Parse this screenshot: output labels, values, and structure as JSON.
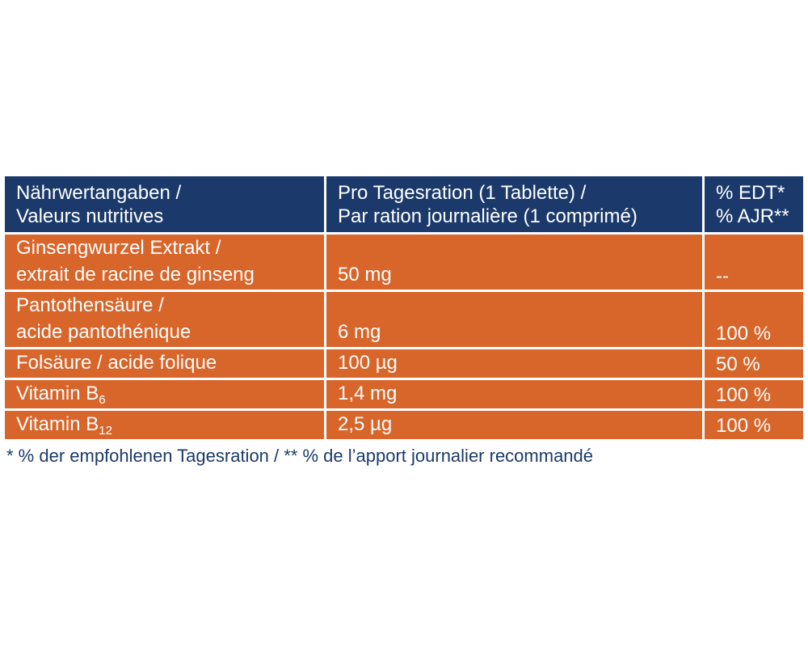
{
  "colors": {
    "header_background": "#1b3a6b",
    "row_background": "#d8652a",
    "text_on_color": "#ffffff",
    "footnote_text": "#1b3a6b"
  },
  "header": {
    "nutrient_line1": "Nährwertangaben /",
    "nutrient_line2": "Valeurs nutritives",
    "amount_line1": "Pro Tagesration (1 Tablette) /",
    "amount_line2": "Par ration journalière (1 comprimé)",
    "percent_line1": "% EDT*",
    "percent_line2": "% AJR**"
  },
  "rows": [
    {
      "name_line1": "Ginsengwurzel Extrakt /",
      "name_line2": "extrait de racine de ginseng",
      "amount": "50 mg",
      "percent": "--"
    },
    {
      "name_line1": "Pantothensäure /",
      "name_line2": "acide pantothénique",
      "amount": "6 mg",
      "percent": "100 %"
    },
    {
      "name": "Folsäure / acide folique",
      "amount": "100 µg",
      "percent": "50 %"
    },
    {
      "name": "Vitamin B",
      "subscript": "6",
      "amount": "1,4 mg",
      "percent": "100 %"
    },
    {
      "name": "Vitamin B",
      "subscript": "12",
      "amount": "2,5 µg",
      "percent": "100 %"
    }
  ],
  "footnote": "* % der empfohlenen Tagesration / ** % de l’apport journalier recommandé"
}
